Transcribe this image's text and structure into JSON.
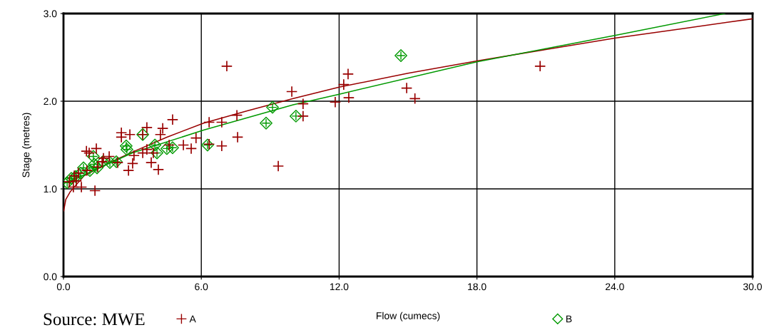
{
  "chart_data": {
    "type": "scatter",
    "xlabel": "Flow (cumecs)",
    "ylabel": "Stage (metres)",
    "annotations": [
      "Source: MWE"
    ],
    "xlim": [
      0,
      30
    ],
    "ylim": [
      0,
      3
    ],
    "xticks": [
      {
        "value": 0,
        "label": "0.0"
      },
      {
        "value": 6,
        "label": "6.0"
      },
      {
        "value": 12,
        "label": "12.0"
      },
      {
        "value": 18,
        "label": "18.0"
      },
      {
        "value": 24,
        "label": "24.0"
      },
      {
        "value": 30,
        "label": "30.0"
      }
    ],
    "yticks": [
      {
        "value": 0,
        "label": "0.0"
      },
      {
        "value": 1,
        "label": "1.0"
      },
      {
        "value": 2,
        "label": "2.0"
      },
      {
        "value": 3,
        "label": "3.0"
      }
    ],
    "grid": true,
    "legend": "bottom",
    "series": [
      {
        "name": "A",
        "marker": "cross",
        "color": "#990000",
        "x": [
          7.11,
          20.75,
          12.39,
          12.2,
          9.94,
          14.94,
          15.3,
          12.42,
          11.83,
          10.43,
          10.43,
          9.35,
          7.55,
          7.58,
          6.89,
          6.34,
          6.89,
          6.34,
          5.77,
          5.56,
          5.22,
          4.75,
          4.32,
          4.22,
          4.13,
          3.63,
          3.45,
          3.63,
          3.45,
          3.07,
          3.01,
          2.83,
          2.89,
          2.52,
          2.52,
          1.99,
          1.68,
          1.43,
          1.12,
          1.0,
          1.49,
          1.37,
          0.78,
          0.56,
          0.47,
          0.43,
          1.02,
          0.65,
          0.25,
          1.74,
          2.36,
          3.82,
          4.6,
          3.91
        ],
        "values": [
          2.4,
          2.4,
          2.31,
          2.19,
          2.11,
          2.15,
          2.03,
          2.04,
          1.99,
          1.97,
          1.83,
          1.26,
          1.84,
          1.59,
          1.76,
          1.76,
          1.49,
          1.51,
          1.58,
          1.46,
          1.5,
          1.79,
          1.69,
          1.62,
          1.22,
          1.7,
          1.62,
          1.45,
          1.41,
          1.38,
          1.29,
          1.21,
          1.62,
          1.64,
          1.59,
          1.37,
          1.31,
          1.46,
          1.41,
          1.43,
          1.25,
          0.98,
          1.02,
          1.09,
          1.15,
          1.02,
          1.21,
          1.18,
          1.08,
          1.35,
          1.3,
          1.3,
          1.5,
          1.41
        ]
      },
      {
        "name": "B",
        "marker": "diamond",
        "color": "#009900",
        "x": [
          14.69,
          9.1,
          8.82,
          10.12,
          6.27,
          3.45,
          2.73,
          2.76,
          3.98,
          4.5,
          4.75,
          4.07,
          2.3,
          1.71,
          1.46,
          1.34,
          0.87,
          0.75,
          0.53,
          0.34,
          0.16,
          1.15,
          2.02,
          1.3
        ],
        "values": [
          2.52,
          1.93,
          1.75,
          1.83,
          1.5,
          1.62,
          1.49,
          1.45,
          1.5,
          1.46,
          1.47,
          1.41,
          1.31,
          1.31,
          1.24,
          1.28,
          1.24,
          1.18,
          1.14,
          1.12,
          1.07,
          1.21,
          1.3,
          1.37
        ]
      },
      {
        "type": "line",
        "color": "#990000",
        "x": [
          0.01,
          0.1,
          0.3,
          0.6,
          0.9,
          2,
          3,
          4.5,
          6.1,
          8,
          10,
          12,
          15,
          18,
          21,
          24,
          27,
          30
        ],
        "values": [
          0.75,
          0.88,
          0.97,
          1.06,
          1.15,
          1.3,
          1.42,
          1.59,
          1.75,
          1.89,
          2.03,
          2.16,
          2.32,
          2.46,
          2.59,
          2.72,
          2.83,
          2.94
        ]
      },
      {
        "type": "line",
        "color": "#009900",
        "x": [
          0,
          0.2,
          0.9,
          3,
          6.1,
          10,
          12,
          18,
          21,
          24,
          28.8
        ],
        "values": [
          1.06,
          1.08,
          1.16,
          1.41,
          1.67,
          1.96,
          2.08,
          2.45,
          2.6,
          2.75,
          3.0
        ]
      }
    ]
  }
}
